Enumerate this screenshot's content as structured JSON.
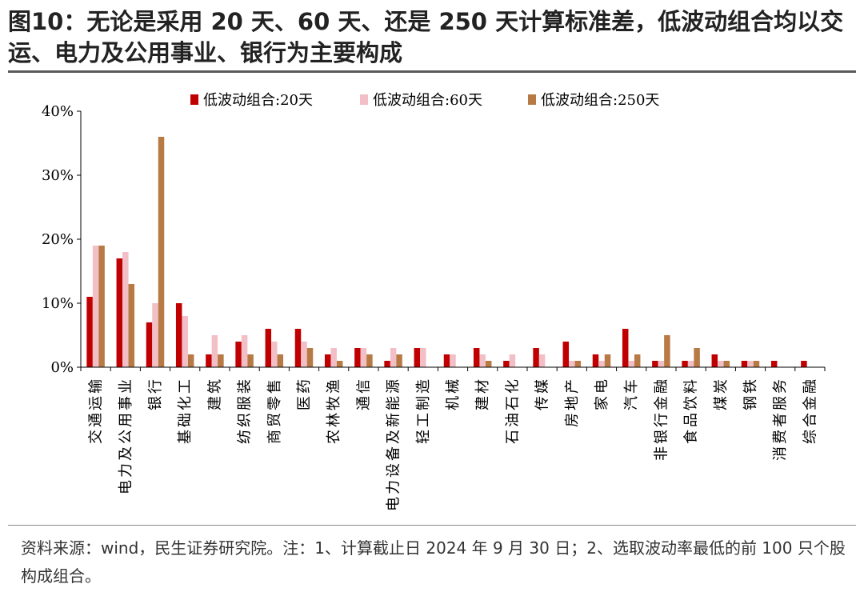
{
  "title": "图10：无论是采用 20 天、60 天、还是 250 天计算标准差，低波动组合均以交运、电力及公用事业、银行为主要构成",
  "note": "资料来源：wind，民生证券研究院。注：1、计算截止日 2024 年 9 月 30 日；2、选取波动率最低的前 100 只个股构成组合。",
  "colors": {
    "s20": "#C00000",
    "s60": "#F2BFC6",
    "s250": "#B87A45"
  },
  "chart_data": {
    "type": "bar",
    "categories": [
      "交通运输",
      "电力及公用事业",
      "银行",
      "基础化工",
      "建筑",
      "纺织服装",
      "商贸零售",
      "医药",
      "农林牧渔",
      "通信",
      "电力设备及新能源",
      "轻工制造",
      "机械",
      "建材",
      "石油石化",
      "传媒",
      "房地产",
      "家电",
      "汽车",
      "非银行金融",
      "食品饮料",
      "煤炭",
      "钢铁",
      "消费者服务",
      "综合金融"
    ],
    "series": [
      {
        "name": "低波动组合:20天",
        "values": [
          11,
          17,
          7,
          10,
          2,
          4,
          6,
          6,
          2,
          3,
          1,
          3,
          2,
          3,
          1,
          3,
          4,
          2,
          6,
          1,
          1,
          2,
          1,
          1,
          1
        ]
      },
      {
        "name": "低波动组合:60天",
        "values": [
          19,
          18,
          10,
          8,
          5,
          5,
          4,
          4,
          3,
          3,
          3,
          3,
          2,
          2,
          2,
          2,
          1,
          1,
          1,
          1,
          1,
          1,
          1,
          0,
          0
        ]
      },
      {
        "name": "低波动组合:250天",
        "values": [
          19,
          13,
          36,
          2,
          2,
          2,
          2,
          3,
          1,
          2,
          2,
          0,
          0,
          1,
          0,
          0,
          1,
          2,
          2,
          5,
          3,
          1,
          1,
          0,
          0
        ]
      }
    ],
    "yticks": [
      "0%",
      "10%",
      "20%",
      "30%",
      "40%"
    ],
    "ylim": [
      0,
      40
    ],
    "legend_position": "top",
    "grid": false
  }
}
